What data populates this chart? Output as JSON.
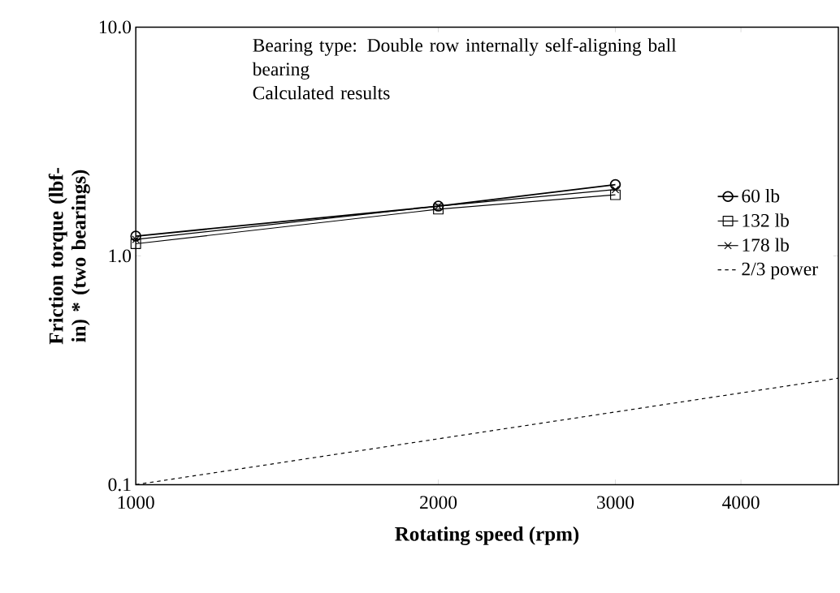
{
  "chart_data": {
    "type": "line",
    "xlabel": "Rotating speed (rpm)",
    "ylabel": "Friction torque (lbf-in) * (two bearings)",
    "annotations": [
      "Bearing type: Double row internally self-aligning ball bearing",
      "Calculated results"
    ],
    "x": [
      1000,
      2000,
      3000
    ],
    "series": [
      {
        "name": "60 lb",
        "color": "#000000",
        "marker": "circle",
        "values": [
          1.22,
          1.65,
          2.05
        ]
      },
      {
        "name": "132 lb",
        "color": "#000000",
        "marker": "square",
        "values": [
          1.13,
          1.6,
          1.85
        ]
      },
      {
        "name": "178 lb",
        "color": "#000000",
        "marker": "cross",
        "values": [
          1.18,
          1.65,
          1.95
        ]
      },
      {
        "name": "2/3 power",
        "color": "#000000",
        "marker": "none",
        "line_style": "dashed",
        "x": [
          1000,
          5000
        ],
        "values": [
          0.1,
          0.292
        ]
      }
    ],
    "log": "xy",
    "xlim": [
      1000,
      5000
    ],
    "ylim": [
      0.1,
      10
    ],
    "xticks": [
      1000,
      2000,
      3000,
      4000
    ],
    "yticks": [
      {
        "value": 0.1,
        "label": "0.1"
      },
      {
        "value": 1,
        "label": "1.0"
      },
      {
        "value": 10,
        "label": "10.0"
      }
    ],
    "legend": "right",
    "grid": false
  }
}
